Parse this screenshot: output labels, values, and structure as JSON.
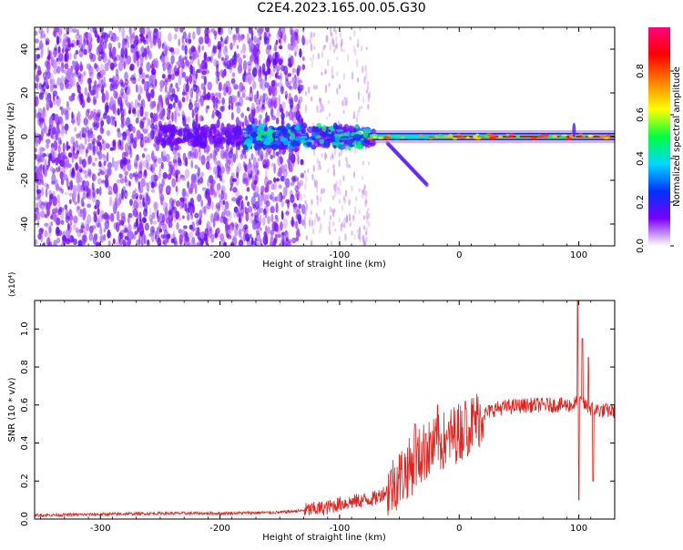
{
  "title": "C2E4.2023.165.00.05.G30",
  "chart_data": [
    {
      "type": "heatmap",
      "xlabel": "Height of straight line (km)",
      "ylabel": "Frequency (Hz)",
      "xlim": [
        -355,
        130
      ],
      "ylim": [
        -50,
        50
      ],
      "xticks": [
        -300,
        -200,
        -100,
        0,
        100
      ],
      "yticks": [
        -40,
        -20,
        0,
        20,
        40
      ],
      "colorbar": {
        "label": "Normalized spectral amplitude",
        "range": [
          0,
          1
        ],
        "ticks": [
          "0.0",
          "0.2",
          "0.4",
          "0.6",
          "0.8"
        ],
        "colormap": [
          "#ffffff",
          "#7a00ff",
          "#0030ff",
          "#00d8ff",
          "#00ff40",
          "#ffff00",
          "#ff8000",
          "#ff0000",
          "#ff0080"
        ]
      },
      "features": {
        "carrier_frequency_hz": 0,
        "noise_region_km": [
          -355,
          -130
        ],
        "transition_region_km": [
          -130,
          -75
        ],
        "clean_region_km": [
          -75,
          130
        ],
        "spur_start_km": [
          -60,
          -3
        ],
        "spur_end_km": [
          -27,
          -25
        ]
      }
    },
    {
      "type": "line",
      "xlabel": "Height of straight line (km)",
      "ylabel": "SNR (10 * v/v)",
      "y_multiplier_label": "(x10⁴)",
      "xlim": [
        -355,
        130
      ],
      "ylim": [
        0,
        1.15
      ],
      "xticks": [
        -300,
        -200,
        -100,
        0,
        100
      ],
      "yticks": [
        "0.0",
        "0.2",
        "0.4",
        "0.6",
        "0.8",
        "1.0"
      ],
      "series": [
        {
          "color": "#e8201c",
          "x": [
            -355,
            -300,
            -250,
            -200,
            -150,
            -130,
            -110,
            -100,
            -90,
            -80,
            -70,
            -60,
            -50,
            -40,
            -30,
            -20,
            -10,
            0,
            10,
            20,
            30,
            40,
            60,
            80,
            95,
            100,
            105,
            110,
            120,
            130
          ],
          "y": [
            0.02,
            0.025,
            0.03,
            0.03,
            0.035,
            0.045,
            0.06,
            0.08,
            0.09,
            0.1,
            0.11,
            0.15,
            0.22,
            0.28,
            0.35,
            0.38,
            0.42,
            0.46,
            0.5,
            0.55,
            0.58,
            0.59,
            0.6,
            0.6,
            0.6,
            0.62,
            0.6,
            0.58,
            0.57,
            0.57
          ],
          "spikes": [
            {
              "x": -37,
              "y": 0.5
            },
            {
              "x": -28,
              "y": 0.45
            },
            {
              "x": -18,
              "y": 0.6
            },
            {
              "x": -10,
              "y": 0.42
            },
            {
              "x": 5,
              "y": 0.62
            },
            {
              "x": 99,
              "y": 1.15
            },
            {
              "x": 100,
              "y": 0.1
            },
            {
              "x": 103,
              "y": 0.95
            },
            {
              "x": 108,
              "y": 0.85
            },
            {
              "x": 112,
              "y": 0.2
            }
          ]
        }
      ]
    }
  ]
}
